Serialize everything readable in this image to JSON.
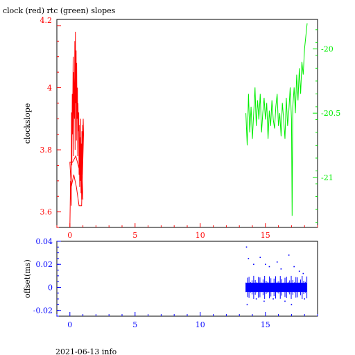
{
  "title": "clock (red) rtc (green) slopes",
  "footer": "2021-06-13 info",
  "colors": {
    "red": "#ff0000",
    "green": "#00ee00",
    "blue": "#0000ff",
    "black": "#000000"
  },
  "chart_data": [
    {
      "type": "line",
      "title": "clock (red) rtc (green) slopes",
      "ylabel": "clockslope",
      "xlim": [
        -1,
        19
      ],
      "ylim_left": [
        3.55,
        4.22
      ],
      "ylim_right": [
        -21.39,
        -19.77
      ],
      "x_ticks": [
        0,
        5,
        10,
        15
      ],
      "x_tick_labels": [
        "0",
        "5",
        "10",
        "15"
      ],
      "y_ticks_left": [
        3.6,
        3.8,
        4
      ],
      "y_tick_labels_left": [
        "3.6",
        "3.8",
        "4"
      ],
      "y_tick_top_label": "4.2",
      "y_ticks_right": [
        -21,
        -20.5,
        -20
      ],
      "y_tick_labels_right": [
        "-21",
        "-20.5",
        "-20"
      ],
      "series": [
        {
          "name": "clock",
          "color": "#ff0000",
          "axis": "left",
          "x": [
            0.0,
            0.05,
            0.1,
            0.12,
            0.15,
            0.18,
            0.2,
            0.25,
            0.28,
            0.3,
            0.35,
            0.38,
            0.4,
            0.42,
            0.45,
            0.48,
            0.5,
            0.52,
            0.55,
            0.58,
            0.6,
            0.62,
            0.65,
            0.68,
            0.7,
            0.72,
            0.75,
            0.78,
            0.8,
            0.82,
            0.85,
            0.88,
            0.9,
            0.92,
            0.95,
            0.98,
            1.0,
            1.02,
            1.05,
            0.9,
            0.7,
            0.5,
            0.3,
            0.1,
            0.0,
            0.2,
            0.45,
            0.7,
            0.95,
            1.0
          ],
          "y": [
            3.55,
            3.7,
            3.62,
            3.92,
            3.75,
            3.98,
            3.85,
            4.1,
            3.78,
            4.05,
            3.9,
            4.15,
            3.8,
            4.18,
            3.95,
            4.12,
            3.83,
            4.08,
            3.9,
            4.0,
            3.78,
            3.95,
            3.86,
            3.92,
            3.72,
            3.88,
            3.68,
            3.84,
            3.7,
            3.9,
            3.66,
            3.82,
            3.64,
            3.86,
            3.72,
            3.88,
            3.8,
            3.9,
            3.85,
            3.62,
            3.62,
            3.68,
            3.72,
            3.68,
            3.76,
            3.76,
            3.78,
            3.74,
            3.7,
            3.64
          ]
        },
        {
          "name": "rtc",
          "color": "#00ee00",
          "axis": "right",
          "x": [
            13.5,
            13.6,
            13.7,
            13.8,
            13.9,
            14.0,
            14.1,
            14.2,
            14.3,
            14.4,
            14.5,
            14.6,
            14.7,
            14.8,
            14.9,
            15.0,
            15.1,
            15.2,
            15.3,
            15.4,
            15.5,
            15.6,
            15.7,
            15.8,
            15.9,
            16.0,
            16.1,
            16.2,
            16.3,
            16.4,
            16.5,
            16.6,
            16.7,
            16.8,
            16.9,
            17.0,
            17.05,
            17.1,
            17.2,
            17.3,
            17.4,
            17.5,
            17.6,
            17.7,
            17.8,
            17.9,
            18.0,
            18.1,
            18.2
          ],
          "y": [
            -20.5,
            -20.75,
            -20.35,
            -20.65,
            -20.45,
            -20.7,
            -20.5,
            -20.3,
            -20.6,
            -20.4,
            -20.55,
            -20.35,
            -20.65,
            -20.5,
            -20.38,
            -20.55,
            -20.42,
            -20.7,
            -20.48,
            -20.6,
            -20.4,
            -20.55,
            -20.62,
            -20.45,
            -20.35,
            -20.6,
            -20.5,
            -20.68,
            -20.42,
            -20.55,
            -20.7,
            -20.38,
            -20.6,
            -20.48,
            -20.3,
            -20.55,
            -21.3,
            -20.45,
            -20.3,
            -20.5,
            -20.2,
            -20.4,
            -20.15,
            -20.35,
            -20.1,
            -20.2,
            -20.0,
            -19.9,
            -19.8
          ]
        }
      ]
    },
    {
      "type": "scatter",
      "ylabel": "offset(ms)",
      "xlim": [
        -1,
        19
      ],
      "ylim": [
        -0.025,
        0.04
      ],
      "x_ticks": [
        0,
        5,
        10,
        15
      ],
      "x_tick_labels": [
        "0",
        "5",
        "10",
        "15"
      ],
      "y_ticks": [
        -0.02,
        0,
        0.02,
        0.04
      ],
      "y_tick_labels": [
        "-0.02",
        "0",
        "0.02",
        "0.04"
      ],
      "series": [
        {
          "name": "offset",
          "color": "#0000ff",
          "band": {
            "x_start": 13.5,
            "x_end": 18.2,
            "y_low": -0.004,
            "y_high": 0.004
          },
          "x": [
            13.55,
            13.6,
            13.7,
            14.1,
            14.3,
            14.6,
            14.9,
            15.0,
            15.3,
            15.6,
            15.9,
            16.2,
            16.5,
            16.8,
            17.0,
            17.2,
            17.6,
            17.9,
            18.0
          ],
          "y": [
            0.035,
            -0.015,
            0.025,
            0.02,
            -0.01,
            0.026,
            -0.012,
            0.02,
            0.018,
            -0.01,
            0.022,
            0.016,
            -0.012,
            0.028,
            -0.015,
            0.018,
            0.014,
            0.012,
            -0.01
          ]
        }
      ]
    }
  ]
}
